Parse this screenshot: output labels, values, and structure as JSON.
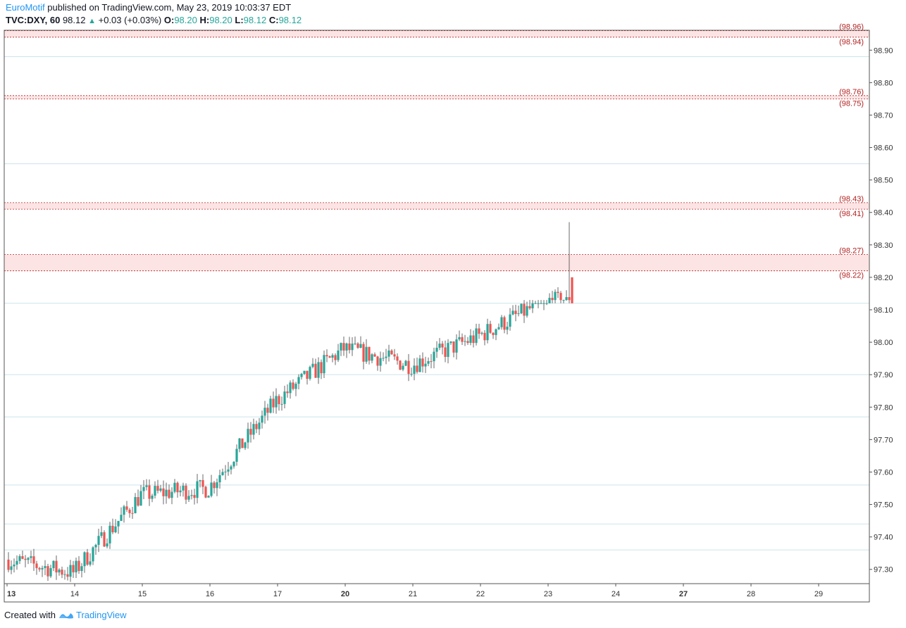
{
  "header": {
    "author": "EuroMotif",
    "published_text": " published on TradingView.com, May 23, 2019 10:03:37 EDT",
    "symbol": "TVC:DXY, 60",
    "last": "98.12",
    "change": "+0.03 (+0.03%)",
    "o_label": "O:",
    "o": "98.20",
    "h_label": "H:",
    "h": "98.20",
    "l_label": "L:",
    "l": "98.12",
    "c_label": "C:",
    "c": "98.12"
  },
  "footer": {
    "created_with": "Created with",
    "brand": "TradingView"
  },
  "colors": {
    "up": "#26a69a",
    "down": "#ef5350",
    "level": "#b22222",
    "zone_fill": "#fde4e4",
    "grid": "#cde3ea"
  },
  "chart_data": {
    "type": "candlestick",
    "title": "TVC:DXY, 60",
    "ylim": [
      97.23,
      98.97
    ],
    "y_ticks": [
      "98.90",
      "98.80",
      "98.70",
      "98.60",
      "98.50",
      "98.40",
      "98.30",
      "98.20",
      "98.10",
      "98.00",
      "97.90",
      "97.80",
      "97.70",
      "97.60",
      "97.50",
      "97.40",
      "97.30"
    ],
    "x_labels": [
      {
        "label": "13",
        "bold": true
      },
      {
        "label": "14",
        "bold": false
      },
      {
        "label": "15",
        "bold": false
      },
      {
        "label": "16",
        "bold": false
      },
      {
        "label": "17",
        "bold": false
      },
      {
        "label": "20",
        "bold": true
      },
      {
        "label": "21",
        "bold": false
      },
      {
        "label": "22",
        "bold": false
      },
      {
        "label": "23",
        "bold": false
      },
      {
        "label": "24",
        "bold": false
      },
      {
        "label": "27",
        "bold": true
      },
      {
        "label": "28",
        "bold": false
      },
      {
        "label": "29",
        "bold": false
      }
    ],
    "grid_levels": [
      98.88,
      98.55,
      98.12,
      97.9,
      97.77,
      97.56,
      97.44,
      97.36
    ],
    "zones": [
      {
        "from": 98.94,
        "to": 98.96,
        "labels": [
          "(98.96)",
          "(98.94)"
        ]
      },
      {
        "from": 98.75,
        "to": 98.76,
        "labels": [
          "(98.76)",
          "(98.75)"
        ]
      },
      {
        "from": 98.41,
        "to": 98.43,
        "labels": [
          "(98.43)",
          "(98.41)"
        ]
      },
      {
        "from": 98.22,
        "to": 98.27,
        "labels": [
          "(98.27)",
          "(98.22)"
        ]
      }
    ],
    "series": [
      {
        "name": "TVC:DXY",
        "segments": [
          {
            "day": "13",
            "start": 97.33,
            "end": 97.29,
            "low": 97.22,
            "high": 97.38
          },
          {
            "day": "14",
            "start": 97.29,
            "end": 97.53,
            "low": 97.26,
            "high": 97.56
          },
          {
            "day": "15",
            "start": 97.53,
            "end": 97.55,
            "low": 97.43,
            "high": 97.71
          },
          {
            "day": "16",
            "start": 97.55,
            "end": 97.82,
            "low": 97.45,
            "high": 97.86
          },
          {
            "day": "17",
            "start": 97.82,
            "end": 97.98,
            "low": 97.77,
            "high": 98.04
          },
          {
            "day": "20",
            "start": 97.98,
            "end": 97.93,
            "low": 97.88,
            "high": 98.03
          },
          {
            "day": "21",
            "start": 97.93,
            "end": 98.02,
            "low": 97.83,
            "high": 98.14
          },
          {
            "day": "22",
            "start": 98.02,
            "end": 98.13,
            "low": 97.9,
            "high": 98.13
          },
          {
            "day": "23",
            "start": 98.13,
            "end": 98.12,
            "low": 98.12,
            "high": 98.37
          }
        ]
      }
    ],
    "last_candle": {
      "open": 98.2,
      "high": 98.2,
      "low": 98.12,
      "close": 98.12
    }
  }
}
